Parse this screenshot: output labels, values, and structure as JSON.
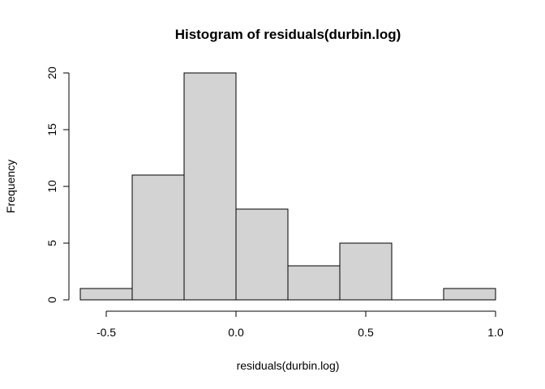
{
  "chart_data": {
    "type": "bar",
    "title": "Histogram of residuals(durbin.log)",
    "xlabel": "residuals(durbin.log)",
    "ylabel": "Frequency",
    "bins": [
      {
        "start": -0.6,
        "end": -0.4,
        "count": 1
      },
      {
        "start": -0.4,
        "end": -0.2,
        "count": 11
      },
      {
        "start": -0.2,
        "end": 0.0,
        "count": 20
      },
      {
        "start": 0.0,
        "end": 0.2,
        "count": 8
      },
      {
        "start": 0.2,
        "end": 0.4,
        "count": 3
      },
      {
        "start": 0.4,
        "end": 0.6,
        "count": 5
      },
      {
        "start": 0.6,
        "end": 0.8,
        "count": 0
      },
      {
        "start": 0.8,
        "end": 1.0,
        "count": 1
      }
    ],
    "xlim": [
      -0.6,
      1.0
    ],
    "ylim": [
      0,
      20
    ],
    "x_ticks": [
      {
        "value": -0.5,
        "label": "-0.5"
      },
      {
        "value": 0.0,
        "label": "0.0"
      },
      {
        "value": 0.5,
        "label": "0.5"
      },
      {
        "value": 1.0,
        "label": "1.0"
      }
    ],
    "y_ticks": [
      {
        "value": 0,
        "label": "0"
      },
      {
        "value": 5,
        "label": "5"
      },
      {
        "value": 10,
        "label": "10"
      },
      {
        "value": 15,
        "label": "15"
      },
      {
        "value": 20,
        "label": "20"
      }
    ],
    "bar_fill": "#d3d3d3",
    "bar_stroke": "#000000",
    "grid": false
  }
}
